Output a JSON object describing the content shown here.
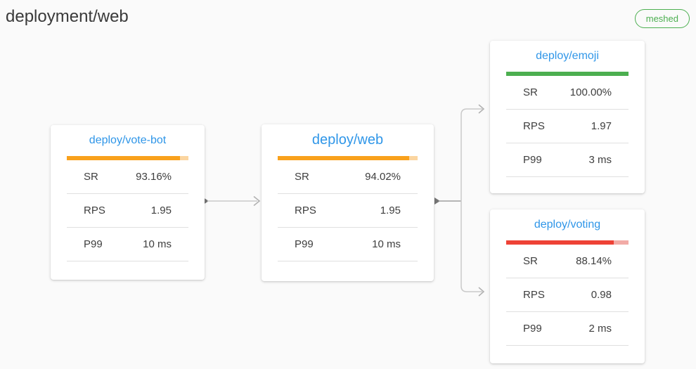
{
  "header": {
    "title": "deployment/web",
    "badge": {
      "label": "meshed",
      "color": "#4caf50"
    }
  },
  "colors": {
    "node_title_link": "#2f96e8",
    "success_green": "#4caf50",
    "warning_orange": "#f9a11c",
    "danger_red": "#ee4236",
    "edge_gray": "#c9c9c9"
  },
  "nodes": [
    {
      "title": "deploy/vote-bot",
      "title_color": "#2f96e8",
      "bar": {
        "percent": 93.16,
        "fill": "#f9a11c",
        "track": "#fbd5a0"
      },
      "metrics": [
        {
          "label": "SR",
          "value": "93.16%"
        },
        {
          "label": "RPS",
          "value": "1.95"
        },
        {
          "label": "P99",
          "value": "10 ms"
        }
      ]
    },
    {
      "title": "deploy/web",
      "title_color": "#2f96e8",
      "bar": {
        "percent": 94.02,
        "fill": "#f9a11c",
        "track": "#fbd5a0"
      },
      "metrics": [
        {
          "label": "SR",
          "value": "94.02%"
        },
        {
          "label": "RPS",
          "value": "1.95"
        },
        {
          "label": "P99",
          "value": "10 ms"
        }
      ]
    },
    {
      "title": "deploy/emoji",
      "title_color": "#2f96e8",
      "bar": {
        "percent": 100,
        "fill": "#4caf50",
        "track": "#4caf50"
      },
      "metrics": [
        {
          "label": "SR",
          "value": "100.00%"
        },
        {
          "label": "RPS",
          "value": "1.97"
        },
        {
          "label": "P99",
          "value": "3 ms"
        }
      ]
    },
    {
      "title": "deploy/voting",
      "title_color": "#2f96e8",
      "bar": {
        "percent": 88.14,
        "fill": "#ee4236",
        "track": "#f2aba6"
      },
      "metrics": [
        {
          "label": "SR",
          "value": "88.14%"
        },
        {
          "label": "RPS",
          "value": "0.98"
        },
        {
          "label": "P99",
          "value": "2 ms"
        }
      ]
    }
  ],
  "edges": [
    {
      "from": "deploy/vote-bot",
      "to": "deploy/web"
    },
    {
      "from": "deploy/web",
      "to": "deploy/emoji"
    },
    {
      "from": "deploy/web",
      "to": "deploy/voting"
    }
  ]
}
